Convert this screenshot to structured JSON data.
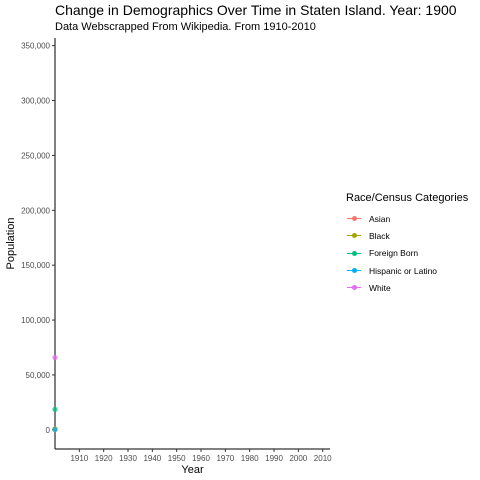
{
  "chart_data": {
    "type": "scatter",
    "title": "Change in Demographics Over Time in Staten Island. Year: 1900",
    "subtitle": "Data Webscrapped From Wikipedia. From 1910-2010",
    "xlabel": "Year",
    "ylabel": "Population",
    "xlim": [
      1900,
      2013
    ],
    "ylim": [
      -17500,
      357000
    ],
    "x_ticks": [
      "1910",
      "1920",
      "1930",
      "1940",
      "1950",
      "1960",
      "1970",
      "1980",
      "1990",
      "2000",
      "2010"
    ],
    "y_ticks": [
      "0",
      "50,000",
      "100,000",
      "150,000",
      "200,000",
      "250,000",
      "300,000",
      "350,000"
    ],
    "grid": false,
    "legend_position": "right",
    "legend_title": "Race/Census Categories",
    "series": [
      {
        "name": "Asian",
        "color": "#F8766D",
        "points": [
          [
            1900,
            400
          ]
        ]
      },
      {
        "name": "Black",
        "color": "#A3A500",
        "points": [
          [
            1900,
            900
          ]
        ]
      },
      {
        "name": "Foreign Born",
        "color": "#00BF7D",
        "points": [
          [
            1900,
            18600
          ]
        ]
      },
      {
        "name": "Hispanic or Latino",
        "color": "#00B0F6",
        "points": [
          [
            1900,
            200
          ]
        ]
      },
      {
        "name": "White",
        "color": "#E76BF3",
        "points": [
          [
            1900,
            65800
          ]
        ]
      }
    ]
  }
}
